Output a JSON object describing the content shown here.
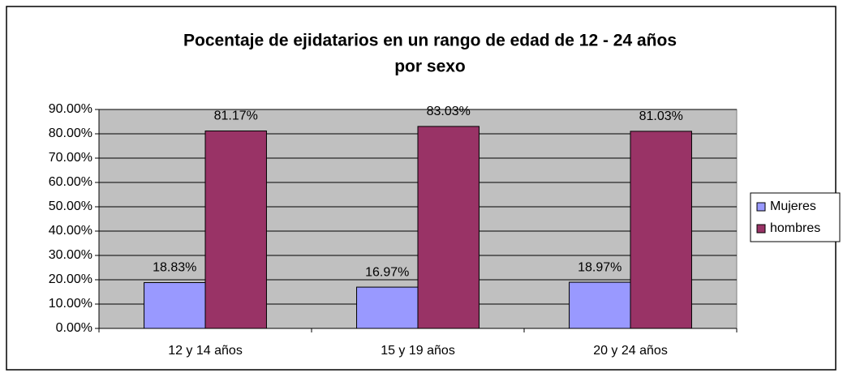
{
  "chart_data": {
    "type": "bar",
    "title": [
      "Pocentaje de ejidatarios en un rango de edad de 12 - 24 años",
      "por sexo"
    ],
    "categories": [
      "12 y 14 años",
      "15 y 19 años",
      "20 y 24 años"
    ],
    "series": [
      {
        "name": "Mujeres",
        "color": "#9999ff",
        "values": [
          18.83,
          16.97,
          18.97
        ],
        "value_labels": [
          "18.83%",
          "16.97%",
          "18.97%"
        ]
      },
      {
        "name": "hombres",
        "color": "#993366",
        "values": [
          81.17,
          83.03,
          81.03
        ],
        "value_labels": [
          "81.17%",
          "83.03%",
          "81.03%"
        ]
      }
    ],
    "ylim": [
      0,
      90
    ],
    "yticks": [
      {
        "value": 0,
        "label": "0.00%"
      },
      {
        "value": 10,
        "label": "10.00%"
      },
      {
        "value": 20,
        "label": "20.00%"
      },
      {
        "value": 30,
        "label": "30.00%"
      },
      {
        "value": 40,
        "label": "40.00%"
      },
      {
        "value": 50,
        "label": "50.00%"
      },
      {
        "value": 60,
        "label": "60.00%"
      },
      {
        "value": 70,
        "label": "70.00%"
      },
      {
        "value": 80,
        "label": "80.00%"
      },
      {
        "value": 90,
        "label": "90.00%"
      }
    ],
    "grid": true,
    "legend": "right"
  }
}
